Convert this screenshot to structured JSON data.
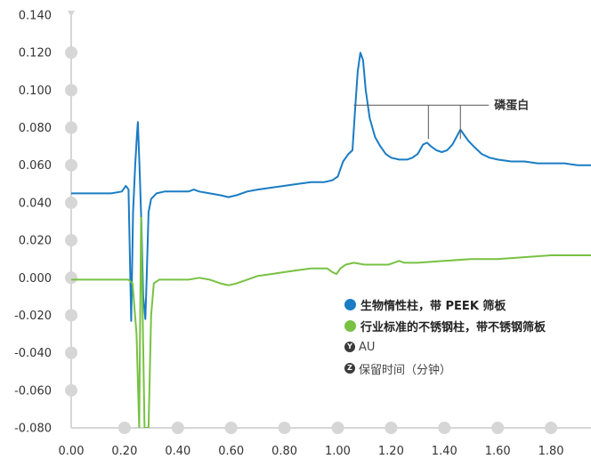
{
  "chart_data": {
    "type": "line",
    "x": {
      "label": "保留时间（分钟）",
      "range": [
        0.0,
        1.95
      ],
      "ticks": [
        "0.00",
        "0.20",
        "0.40",
        "0.60",
        "0.80",
        "1.00",
        "1.20",
        "1.40",
        "1.60",
        "1.80"
      ]
    },
    "y": {
      "label": "AU",
      "range": [
        -0.08,
        0.14
      ],
      "ticks": [
        "-0.080",
        "-0.060",
        "-0.040",
        "-0.020",
        "0.000",
        "0.020",
        "0.040",
        "0.060",
        "0.080",
        "0.100",
        "0.120",
        "0.140"
      ]
    },
    "grid": false,
    "legend_position": "bottom-right",
    "series": [
      {
        "name": "生物惰性柱，带 PEEK 筛板",
        "color": "#1a7cc4",
        "points": [
          [
            0.0,
            0.045
          ],
          [
            0.08,
            0.045
          ],
          [
            0.15,
            0.045
          ],
          [
            0.19,
            0.046
          ],
          [
            0.205,
            0.049
          ],
          [
            0.215,
            0.047
          ],
          [
            0.225,
            -0.023
          ],
          [
            0.232,
            0.035
          ],
          [
            0.24,
            0.06
          ],
          [
            0.246,
            0.075
          ],
          [
            0.25,
            0.083
          ],
          [
            0.256,
            0.06
          ],
          [
            0.263,
            0.03
          ],
          [
            0.27,
            -0.01
          ],
          [
            0.278,
            -0.022
          ],
          [
            0.283,
            0.0
          ],
          [
            0.29,
            0.035
          ],
          [
            0.3,
            0.042
          ],
          [
            0.32,
            0.045
          ],
          [
            0.35,
            0.046
          ],
          [
            0.4,
            0.046
          ],
          [
            0.44,
            0.046
          ],
          [
            0.46,
            0.047
          ],
          [
            0.48,
            0.046
          ],
          [
            0.52,
            0.045
          ],
          [
            0.56,
            0.044
          ],
          [
            0.59,
            0.043
          ],
          [
            0.62,
            0.044
          ],
          [
            0.66,
            0.046
          ],
          [
            0.7,
            0.047
          ],
          [
            0.75,
            0.048
          ],
          [
            0.8,
            0.049
          ],
          [
            0.85,
            0.05
          ],
          [
            0.9,
            0.051
          ],
          [
            0.95,
            0.051
          ],
          [
            0.98,
            0.052
          ],
          [
            1.0,
            0.054
          ],
          [
            1.02,
            0.062
          ],
          [
            1.04,
            0.066
          ],
          [
            1.055,
            0.068
          ],
          [
            1.065,
            0.09
          ],
          [
            1.075,
            0.11
          ],
          [
            1.085,
            0.12
          ],
          [
            1.095,
            0.116
          ],
          [
            1.105,
            0.1
          ],
          [
            1.12,
            0.085
          ],
          [
            1.14,
            0.075
          ],
          [
            1.16,
            0.07
          ],
          [
            1.18,
            0.066
          ],
          [
            1.2,
            0.064
          ],
          [
            1.23,
            0.063
          ],
          [
            1.26,
            0.063
          ],
          [
            1.28,
            0.064
          ],
          [
            1.3,
            0.066
          ],
          [
            1.32,
            0.071
          ],
          [
            1.335,
            0.072
          ],
          [
            1.35,
            0.07
          ],
          [
            1.37,
            0.068
          ],
          [
            1.39,
            0.067
          ],
          [
            1.41,
            0.068
          ],
          [
            1.43,
            0.071
          ],
          [
            1.445,
            0.075
          ],
          [
            1.46,
            0.079
          ],
          [
            1.475,
            0.076
          ],
          [
            1.49,
            0.073
          ],
          [
            1.51,
            0.07
          ],
          [
            1.54,
            0.066
          ],
          [
            1.57,
            0.064
          ],
          [
            1.6,
            0.063
          ],
          [
            1.65,
            0.062
          ],
          [
            1.7,
            0.062
          ],
          [
            1.75,
            0.061
          ],
          [
            1.8,
            0.061
          ],
          [
            1.85,
            0.061
          ],
          [
            1.9,
            0.06
          ],
          [
            1.95,
            0.06
          ]
        ]
      },
      {
        "name": "行业标准的不锈钢柱，带不锈钢筛板",
        "color": "#78c143",
        "points": [
          [
            0.0,
            -0.001
          ],
          [
            0.1,
            -0.001
          ],
          [
            0.18,
            -0.001
          ],
          [
            0.215,
            -0.001
          ],
          [
            0.23,
            -0.003
          ],
          [
            0.245,
            -0.03
          ],
          [
            0.255,
            -0.08
          ],
          [
            0.262,
            0.032
          ],
          [
            0.268,
            -0.02
          ],
          [
            0.275,
            -0.08
          ],
          [
            0.29,
            -0.08
          ],
          [
            0.3,
            -0.02
          ],
          [
            0.31,
            -0.003
          ],
          [
            0.33,
            -0.001
          ],
          [
            0.38,
            -0.001
          ],
          [
            0.44,
            -0.001
          ],
          [
            0.48,
            0.0
          ],
          [
            0.52,
            -0.001
          ],
          [
            0.56,
            -0.003
          ],
          [
            0.59,
            -0.004
          ],
          [
            0.62,
            -0.003
          ],
          [
            0.66,
            -0.001
          ],
          [
            0.7,
            0.001
          ],
          [
            0.75,
            0.002
          ],
          [
            0.8,
            0.003
          ],
          [
            0.85,
            0.004
          ],
          [
            0.9,
            0.005
          ],
          [
            0.94,
            0.005
          ],
          [
            0.96,
            0.005
          ],
          [
            0.98,
            0.003
          ],
          [
            0.995,
            0.002
          ],
          [
            1.01,
            0.005
          ],
          [
            1.03,
            0.007
          ],
          [
            1.06,
            0.008
          ],
          [
            1.1,
            0.007
          ],
          [
            1.15,
            0.007
          ],
          [
            1.19,
            0.007
          ],
          [
            1.21,
            0.008
          ],
          [
            1.23,
            0.009
          ],
          [
            1.25,
            0.008
          ],
          [
            1.3,
            0.008
          ],
          [
            1.4,
            0.009
          ],
          [
            1.5,
            0.01
          ],
          [
            1.6,
            0.01
          ],
          [
            1.7,
            0.011
          ],
          [
            1.8,
            0.012
          ],
          [
            1.9,
            0.012
          ],
          [
            1.95,
            0.012
          ]
        ]
      }
    ],
    "annotations": [
      {
        "text": "磷蛋白",
        "label_at": [
          1.48,
          0.092
        ],
        "bracket_y": 0.092,
        "bracket_x": [
          1.06,
          1.5
        ],
        "ticks_x": [
          1.34,
          1.46
        ]
      }
    ]
  },
  "legend": {
    "items": [
      {
        "label": "生物惰性柱，带 PEEK 筛板",
        "color": "#1a7cc4"
      },
      {
        "label": "行业标准的不锈钢柱，带不锈钢筛板",
        "color": "#78c143"
      },
      {
        "badge": "Y",
        "label": "AU"
      },
      {
        "badge": "Z",
        "label": "保留时间（分钟）"
      }
    ]
  },
  "colors": {
    "axis": "#d6d6d6",
    "marker": "#d6d6d6",
    "annotation": "#555555"
  }
}
